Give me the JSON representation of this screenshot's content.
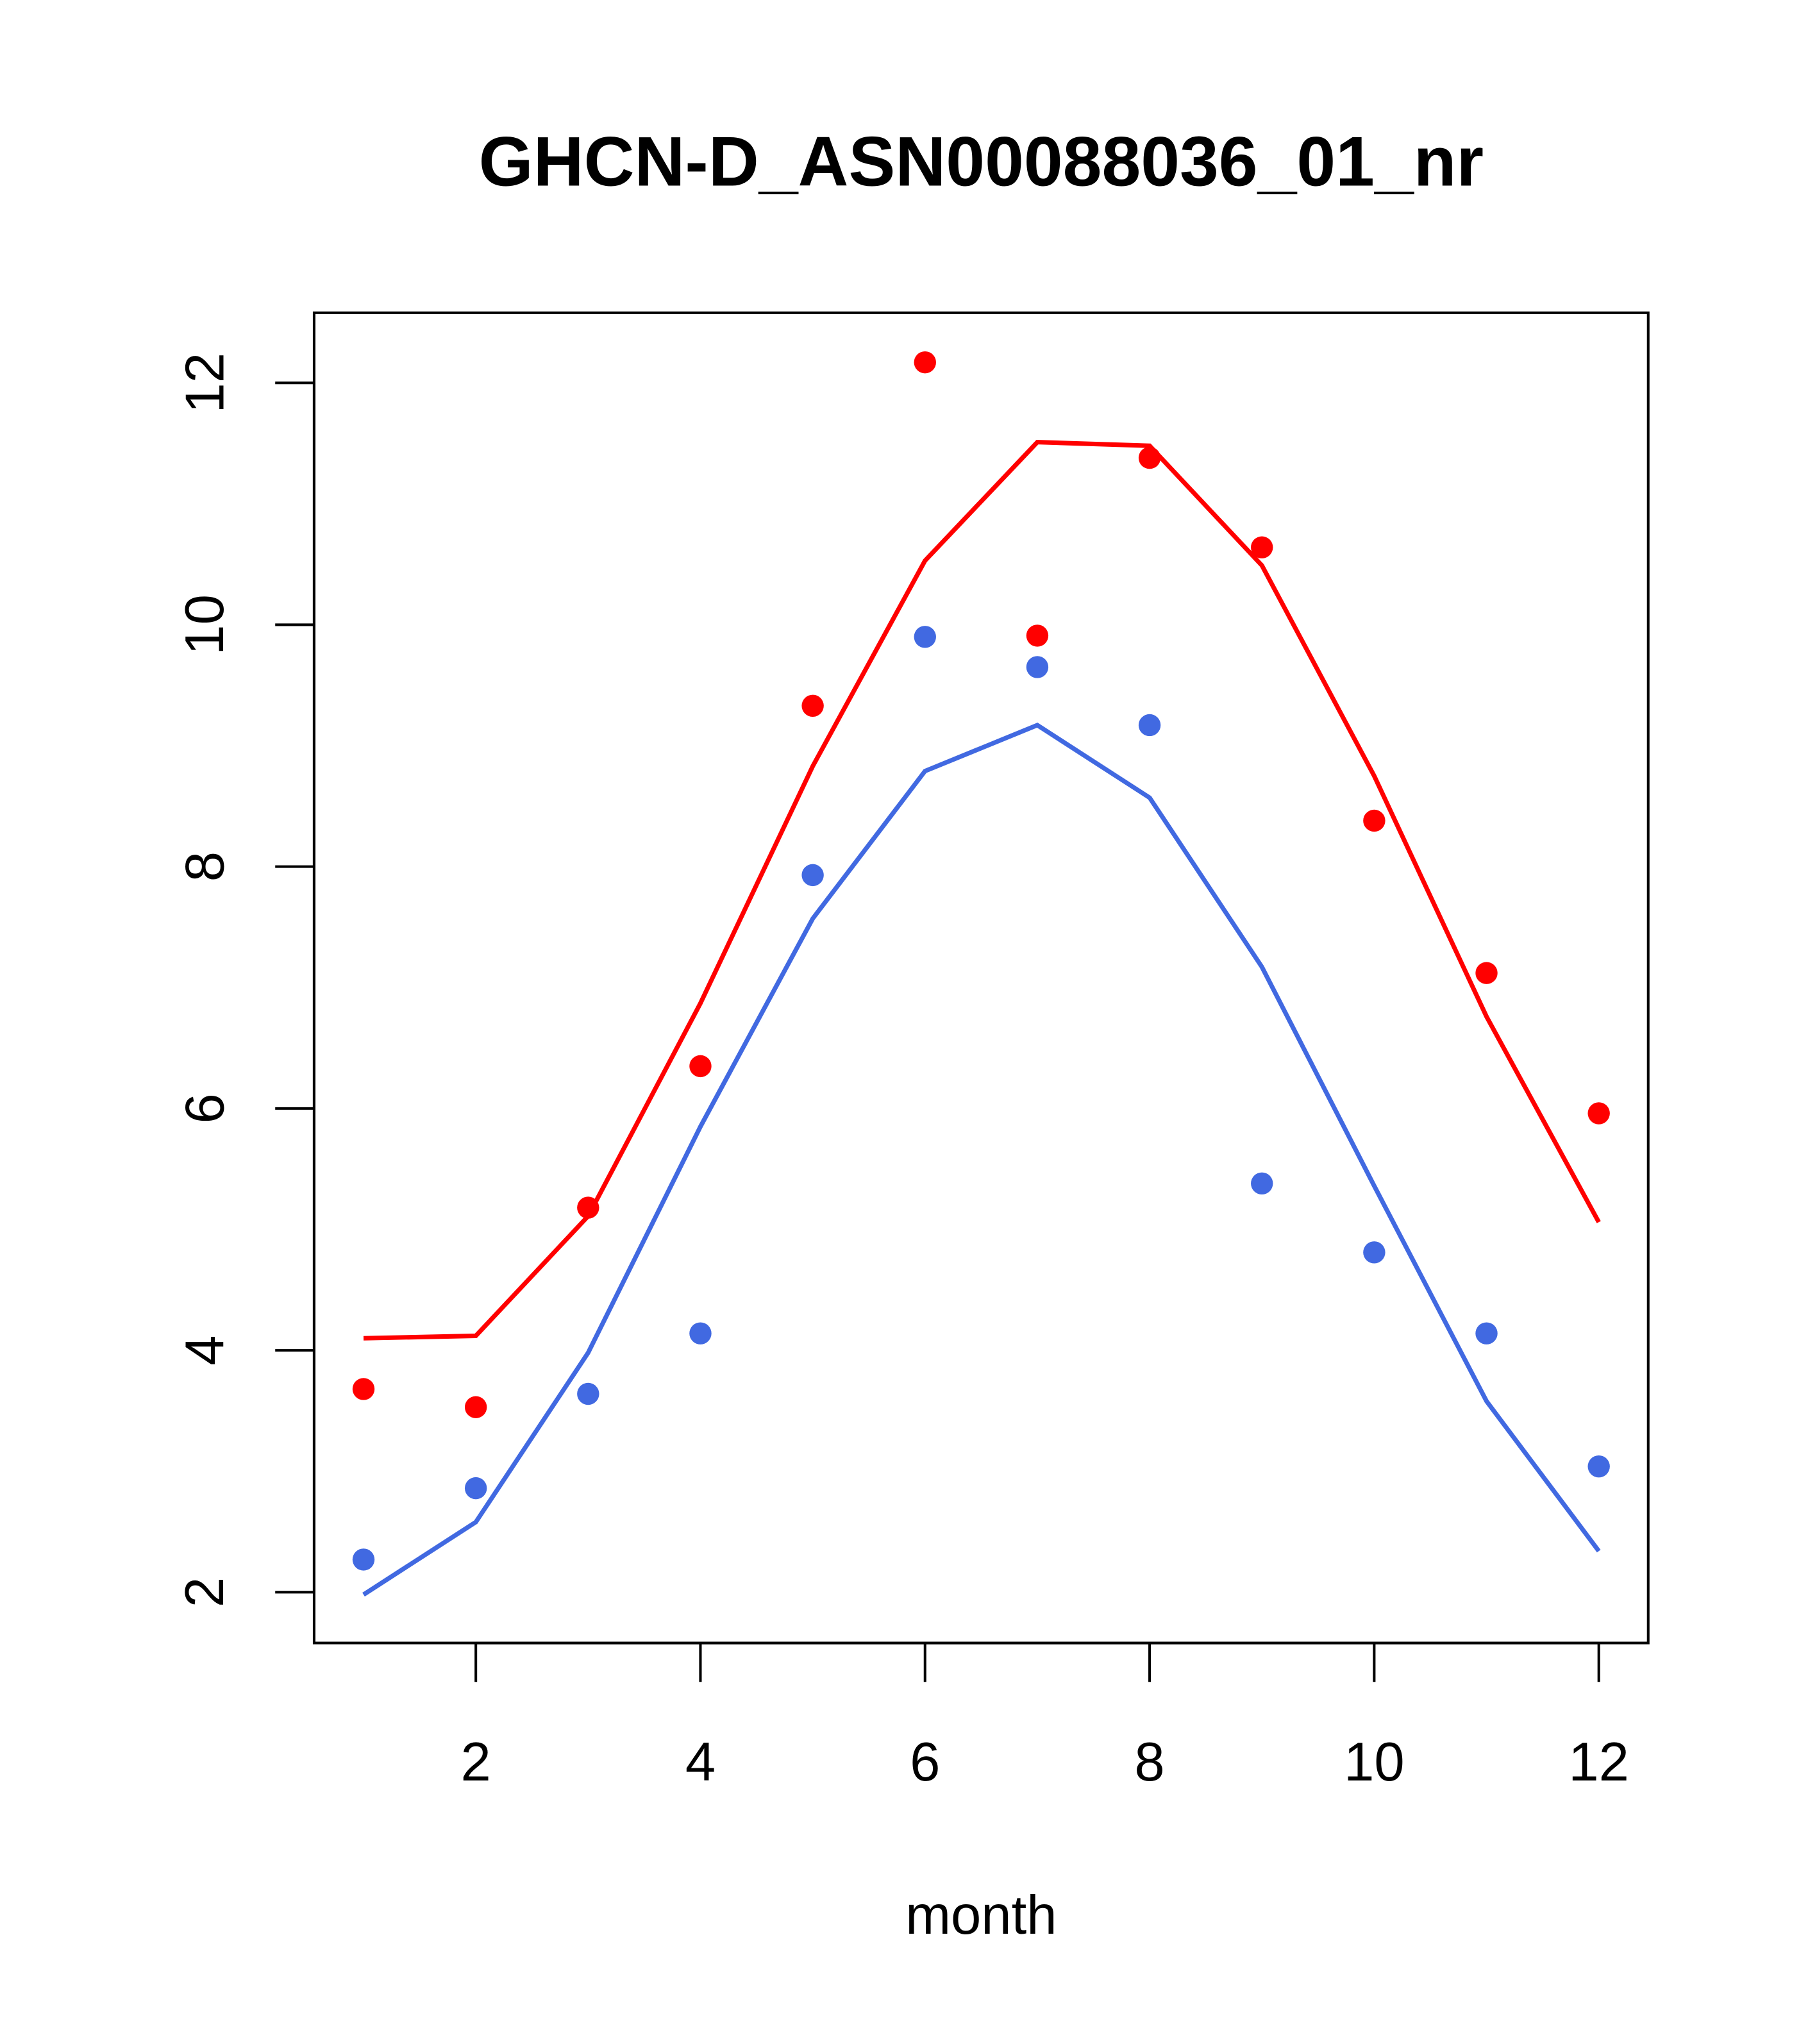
{
  "chart_data": {
    "type": "line",
    "title": "GHCN-D_ASN00088036_01_nr",
    "xlabel": "month",
    "ylabel": "",
    "xlim": [
      0.56,
      12.44
    ],
    "ylim": [
      1.58,
      12.58
    ],
    "x_ticks": [
      2,
      4,
      6,
      8,
      10,
      12
    ],
    "x_tick_labels": [
      "2",
      "4",
      "6",
      "8",
      "10",
      "12"
    ],
    "y_ticks": [
      2,
      4,
      6,
      8,
      10,
      12
    ],
    "y_tick_labels": [
      "2",
      "4",
      "6",
      "8",
      "10",
      "12"
    ],
    "grid": false,
    "x": [
      1,
      2,
      3,
      4,
      5,
      6,
      7,
      8,
      9,
      10,
      11,
      12
    ],
    "series": [
      {
        "name": "red-points",
        "kind": "points",
        "color": "#ff0000",
        "values": [
          3.68,
          3.53,
          5.18,
          6.35,
          9.33,
          12.17,
          9.91,
          11.38,
          10.64,
          8.38,
          7.12,
          5.96
        ]
      },
      {
        "name": "red-line",
        "kind": "line",
        "color": "#ff0000",
        "values": [
          4.1,
          4.12,
          5.11,
          6.87,
          8.83,
          10.53,
          11.51,
          11.48,
          10.49,
          8.75,
          6.76,
          5.06
        ]
      },
      {
        "name": "blue-points",
        "kind": "points",
        "color": "#4169e1",
        "values": [
          2.27,
          2.86,
          3.64,
          4.14,
          7.93,
          9.9,
          9.65,
          9.17,
          5.38,
          4.81,
          4.14,
          3.04
        ]
      },
      {
        "name": "blue-line",
        "kind": "line",
        "color": "#4169e1",
        "values": [
          1.98,
          2.58,
          3.98,
          5.85,
          7.57,
          8.79,
          9.17,
          8.57,
          7.17,
          5.36,
          3.58,
          2.34
        ]
      }
    ]
  }
}
